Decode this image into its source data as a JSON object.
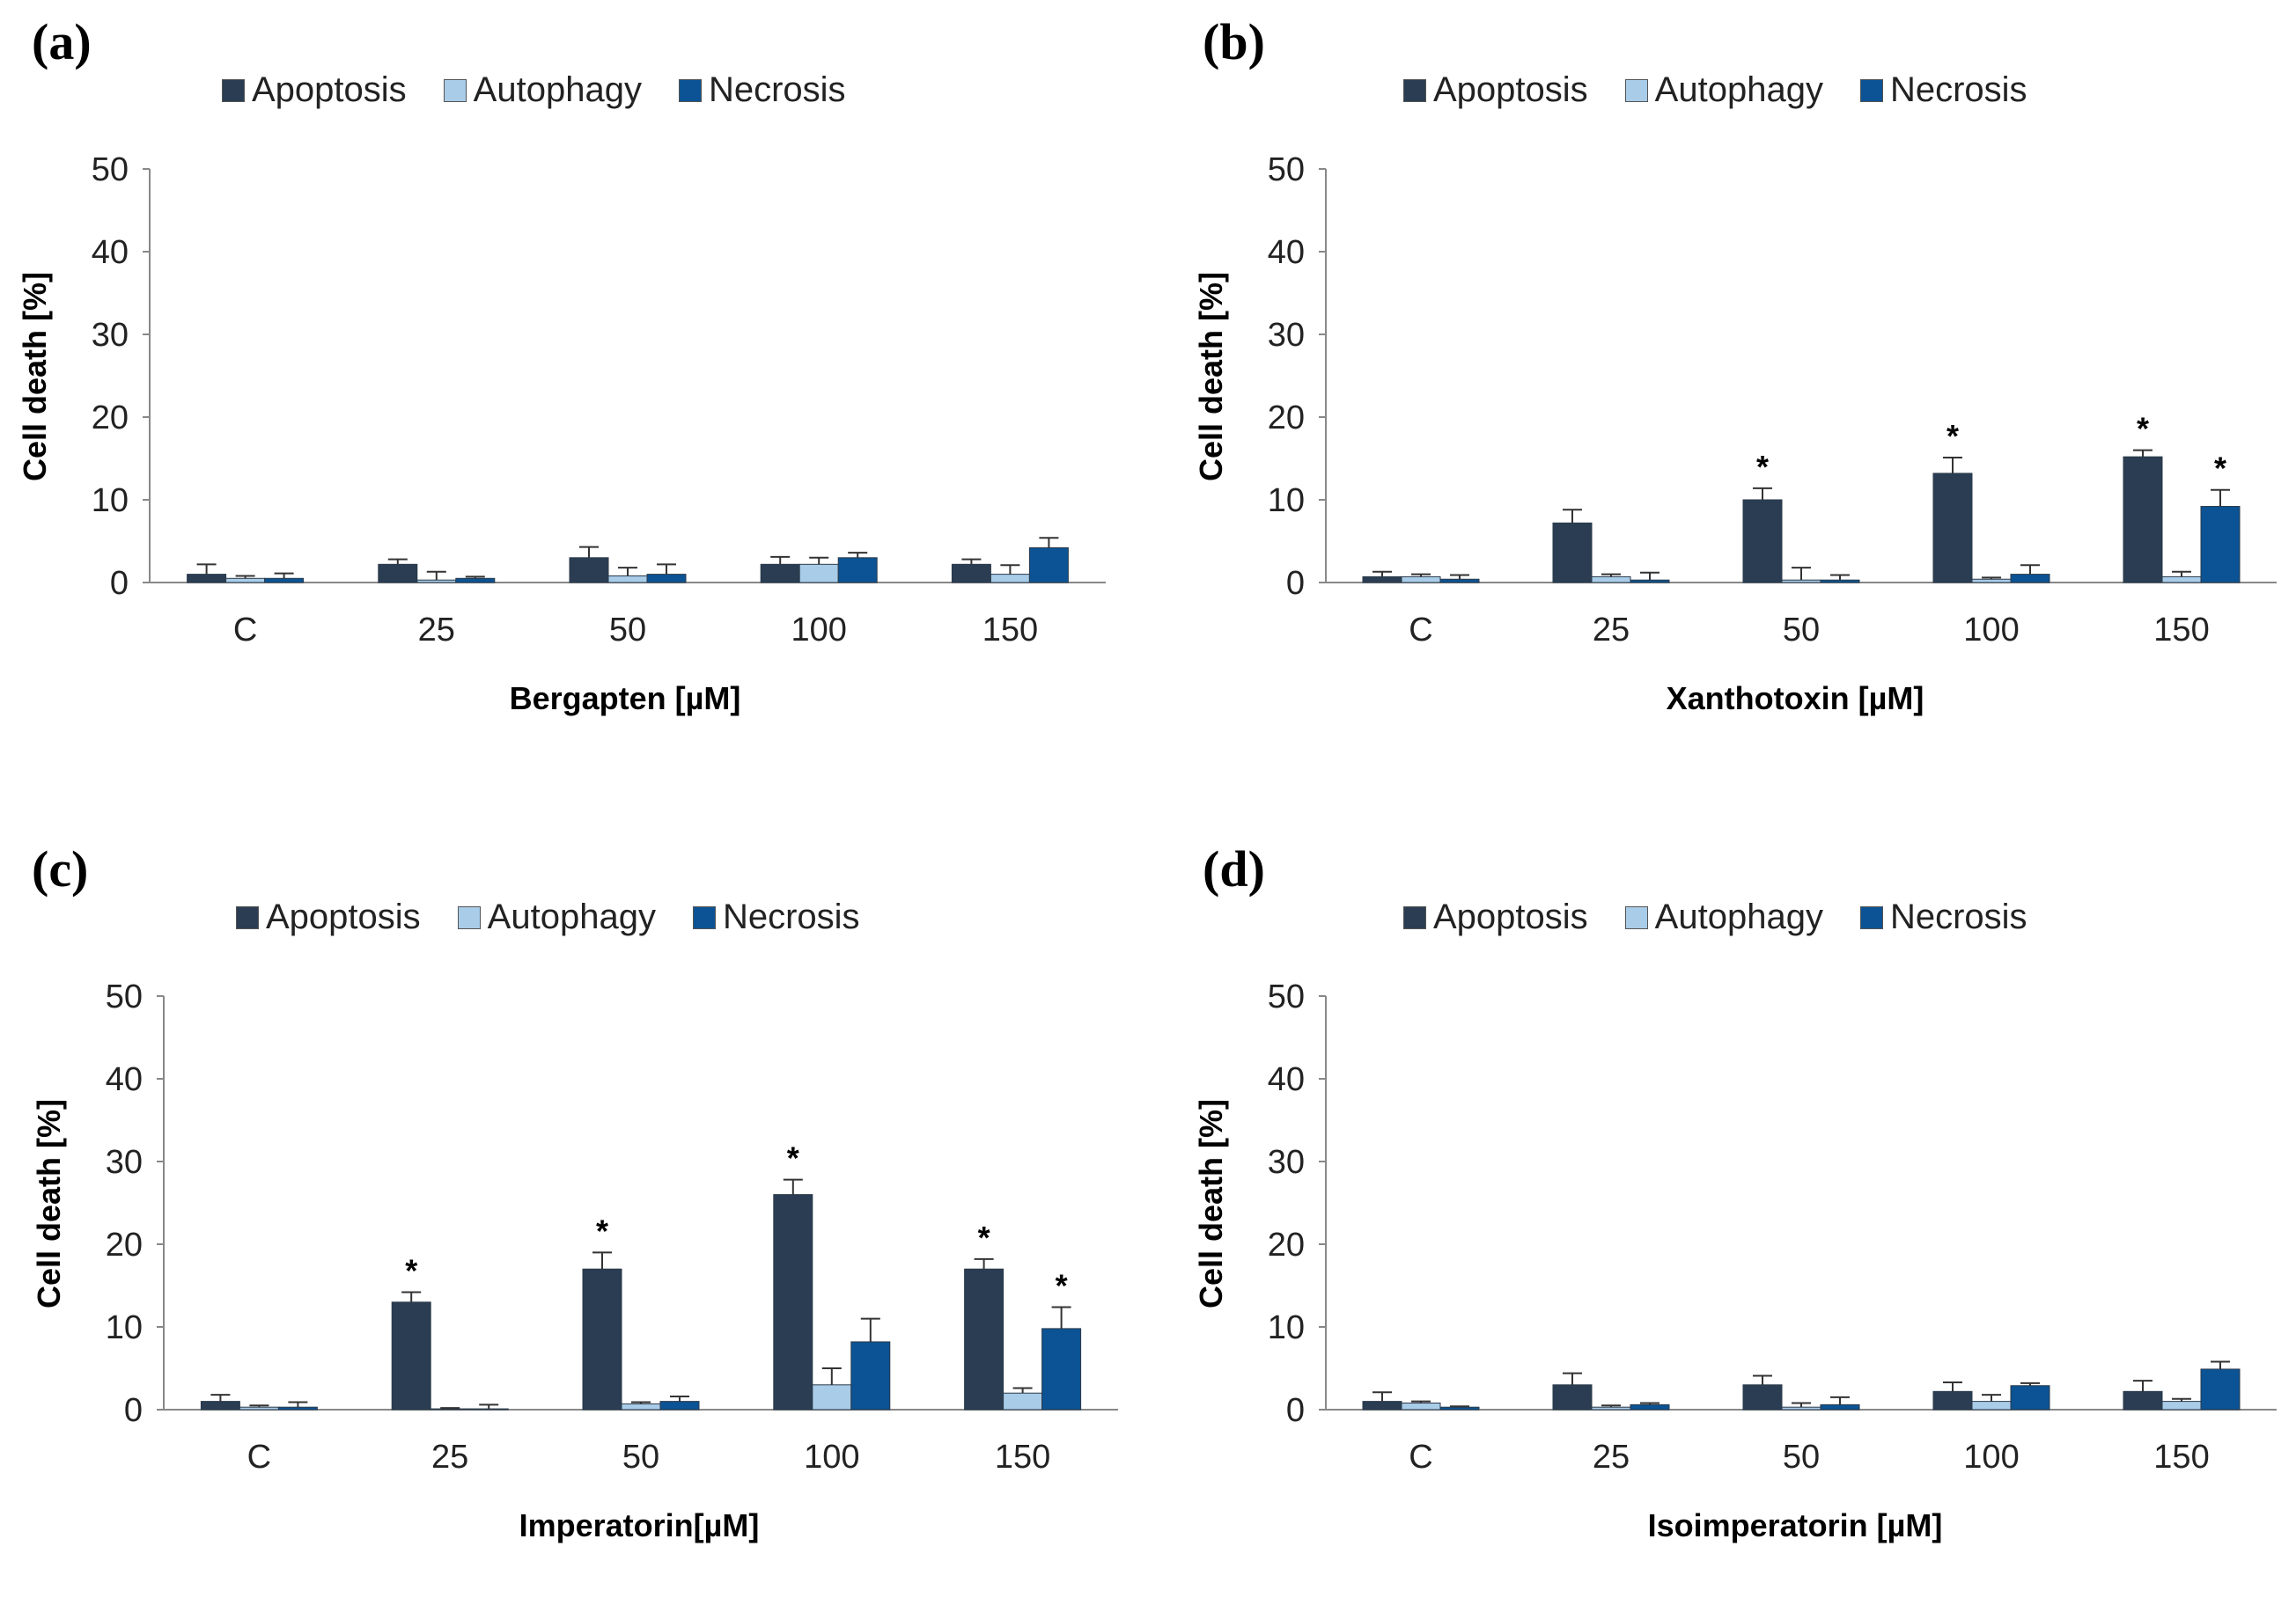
{
  "chart_data": [
    {
      "type": "bar",
      "panel_label": "(a)",
      "xlabel": "Bergapten [µM]",
      "ylabel": "Cell death [%]",
      "ylim": [
        0,
        50
      ],
      "yticks": [
        "0",
        "10",
        "20",
        "30",
        "40",
        "50"
      ],
      "categories": [
        "C",
        "25",
        "50",
        "100",
        "150"
      ],
      "legend_position": "top",
      "series": [
        {
          "name": "Apoptosis",
          "color": "#2a3d52",
          "values": [
            1,
            2.2,
            3,
            2.2,
            2.2
          ],
          "errors": [
            1.2,
            0.6,
            1.3,
            0.9,
            0.6
          ],
          "significant": [
            false,
            false,
            false,
            false,
            false
          ]
        },
        {
          "name": "Autophagy",
          "color": "#a9cce8",
          "values": [
            0.5,
            0.3,
            0.8,
            2.2,
            1
          ],
          "errors": [
            0.3,
            1,
            1,
            0.8,
            1.1
          ],
          "significant": [
            false,
            false,
            false,
            false,
            false
          ]
        },
        {
          "name": "Necrosis",
          "color": "#0b5394",
          "values": [
            0.5,
            0.5,
            1,
            3,
            4.2
          ],
          "errors": [
            0.6,
            0.2,
            1.2,
            0.6,
            1.2
          ],
          "significant": [
            false,
            false,
            false,
            false,
            false
          ]
        }
      ]
    },
    {
      "type": "bar",
      "panel_label": "(b)",
      "xlabel": "Xanthotoxin  [µM]",
      "ylabel": "Cell death [%]",
      "ylim": [
        0,
        50
      ],
      "yticks": [
        "0",
        "10",
        "20",
        "30",
        "40",
        "50"
      ],
      "categories": [
        "C",
        "25",
        "50",
        "100",
        "150"
      ],
      "legend_position": "top",
      "series": [
        {
          "name": "Apoptosis",
          "color": "#2a3d52",
          "values": [
            0.7,
            7.2,
            10,
            13.2,
            15.2
          ],
          "errors": [
            0.6,
            1.6,
            1.4,
            1.9,
            0.8
          ],
          "significant": [
            false,
            false,
            true,
            true,
            true
          ]
        },
        {
          "name": "Autophagy",
          "color": "#a9cce8",
          "values": [
            0.7,
            0.7,
            0.3,
            0.4,
            0.7
          ],
          "errors": [
            0.3,
            0.3,
            1.5,
            0.2,
            0.6
          ],
          "significant": [
            false,
            false,
            false,
            false,
            false
          ]
        },
        {
          "name": "Necrosis",
          "color": "#0b5394",
          "values": [
            0.4,
            0.3,
            0.3,
            1,
            9.2
          ],
          "errors": [
            0.5,
            0.9,
            0.6,
            1.1,
            2
          ],
          "significant": [
            false,
            false,
            false,
            false,
            true
          ]
        }
      ]
    },
    {
      "type": "bar",
      "panel_label": "(c)",
      "xlabel": "Imperatorin[µM]",
      "ylabel": "Cell death [%]",
      "ylim": [
        0,
        50
      ],
      "yticks": [
        "0",
        "10",
        "20",
        "30",
        "40",
        "50"
      ],
      "categories": [
        "C",
        "25",
        "50",
        "100",
        "150"
      ],
      "legend_position": "top",
      "series": [
        {
          "name": "Apoptosis",
          "color": "#2a3d52",
          "values": [
            1,
            13,
            17,
            26,
            17
          ],
          "errors": [
            0.8,
            1.2,
            2,
            1.8,
            1.2
          ],
          "significant": [
            false,
            true,
            true,
            true,
            true
          ]
        },
        {
          "name": "Autophagy",
          "color": "#a9cce8",
          "values": [
            0.3,
            0.1,
            0.7,
            3,
            2
          ],
          "errors": [
            0.2,
            0.1,
            0.2,
            2,
            0.6
          ],
          "significant": [
            false,
            false,
            false,
            false,
            false
          ]
        },
        {
          "name": "Necrosis",
          "color": "#0b5394",
          "values": [
            0.3,
            0.1,
            1,
            8.2,
            9.8
          ],
          "errors": [
            0.6,
            0.5,
            0.6,
            2.8,
            2.6
          ],
          "significant": [
            false,
            false,
            false,
            false,
            true
          ]
        }
      ]
    },
    {
      "type": "bar",
      "panel_label": "(d)",
      "xlabel": "Isoimperatorin [µM]",
      "ylabel": "Cell death [%]",
      "ylim": [
        0,
        50
      ],
      "yticks": [
        "0",
        "10",
        "20",
        "30",
        "40",
        "50"
      ],
      "categories": [
        "C",
        "25",
        "50",
        "100",
        "150"
      ],
      "legend_position": "top",
      "series": [
        {
          "name": "Apoptosis",
          "color": "#2a3d52",
          "values": [
            1,
            3,
            3,
            2.2,
            2.2
          ],
          "errors": [
            1.1,
            1.4,
            1.1,
            1.1,
            1.3
          ],
          "significant": [
            false,
            false,
            false,
            false,
            false
          ]
        },
        {
          "name": "Autophagy",
          "color": "#a9cce8",
          "values": [
            0.8,
            0.3,
            0.3,
            1,
            1
          ],
          "errors": [
            0.2,
            0.2,
            0.5,
            0.8,
            0.3
          ],
          "significant": [
            false,
            false,
            false,
            false,
            false
          ]
        },
        {
          "name": "Necrosis",
          "color": "#0b5394",
          "values": [
            0.3,
            0.6,
            0.6,
            2.9,
            4.9
          ],
          "errors": [
            0.1,
            0.2,
            0.9,
            0.3,
            0.9
          ],
          "significant": [
            false,
            false,
            false,
            false,
            false
          ]
        }
      ]
    }
  ],
  "significance_marker": "*"
}
